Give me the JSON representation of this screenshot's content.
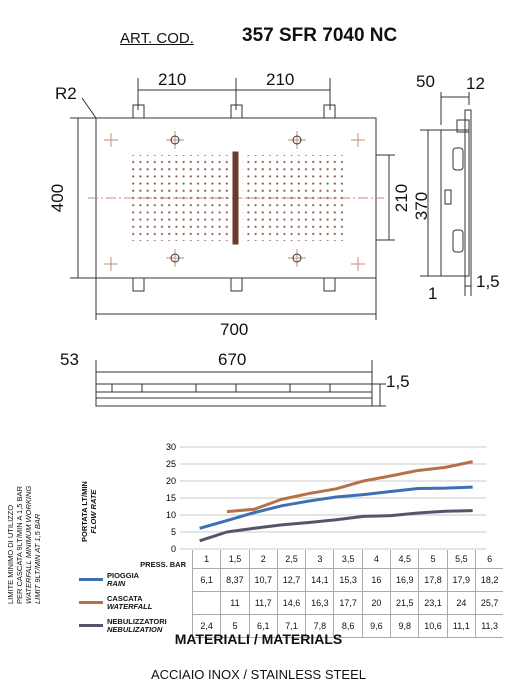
{
  "header": {
    "label": "ART. COD.",
    "code": "357 SFR 7040 NC"
  },
  "top_view": {
    "radius": "R2",
    "dim_left_width": "210",
    "dim_right_width": "210",
    "dim_height": "400",
    "dim_inner_height": "210",
    "dim_total_width": "700"
  },
  "side_view": {
    "dim_top": "50",
    "dim_right": "12",
    "dim_height": "370",
    "dim_bottom_left": "1",
    "dim_bottom_right": "1,5"
  },
  "front_view": {
    "dim_left": "53",
    "dim_width": "670",
    "dim_right": "1,5"
  },
  "side_note": [
    "LIMITE MINIMO DI UTILIZZO",
    "PER CASCATA 9LT/MIN A 1,5 BAR",
    "WATERFALL MINIMUM WORKING",
    "LIMIT 9LT/MIN AT 1,5 BAR"
  ],
  "chart_data": {
    "type": "line",
    "ylabel": [
      "PORTATA LT/MIN",
      "FLOW RATE"
    ],
    "xlabel": "PRESS. BAR",
    "ylim": [
      0,
      30
    ],
    "yticks": [
      "0",
      "5",
      "10",
      "15",
      "20",
      "25",
      "30"
    ],
    "categories": [
      "1",
      "1,5",
      "2",
      "2,5",
      "3",
      "3,5",
      "4",
      "4,5",
      "5",
      "5,5",
      "6"
    ],
    "series": [
      {
        "name": "PIOGGIA",
        "name_en": "RAIN",
        "color": "#3f6fb5",
        "values": [
          6.1,
          8.37,
          10.7,
          12.7,
          14.1,
          15.3,
          16,
          16.9,
          17.8,
          17.9,
          18.2
        ],
        "labels": [
          "6,1",
          "8,37",
          "10,7",
          "12,7",
          "14,1",
          "15,3",
          "16",
          "16,9",
          "17,8",
          "17,9",
          "18,2"
        ]
      },
      {
        "name": "CASCATA",
        "name_en": "WATERFALL",
        "color": "#b8704a",
        "values": [
          null,
          11,
          11.7,
          14.6,
          16.3,
          17.7,
          20,
          21.5,
          23.1,
          24,
          25.7
        ],
        "labels": [
          "",
          "11",
          "11,7",
          "14,6",
          "16,3",
          "17,7",
          "20",
          "21,5",
          "23,1",
          "24",
          "25,7"
        ]
      },
      {
        "name": "NEBULIZZATORI",
        "name_en": "NEBULIZATION",
        "color": "#56546a",
        "values": [
          2.4,
          5,
          6.1,
          7.1,
          7.8,
          8.6,
          9.6,
          9.8,
          10.6,
          11.1,
          11.3
        ],
        "labels": [
          "2,4",
          "5",
          "6,1",
          "7,1",
          "7,8",
          "8,6",
          "9,6",
          "9,8",
          "10,6",
          "11,1",
          "11,3"
        ]
      }
    ]
  },
  "materials": {
    "title": "MATERIALI / MATERIALS",
    "value": "ACCIAIO INOX / STAINLESS STEEL"
  }
}
